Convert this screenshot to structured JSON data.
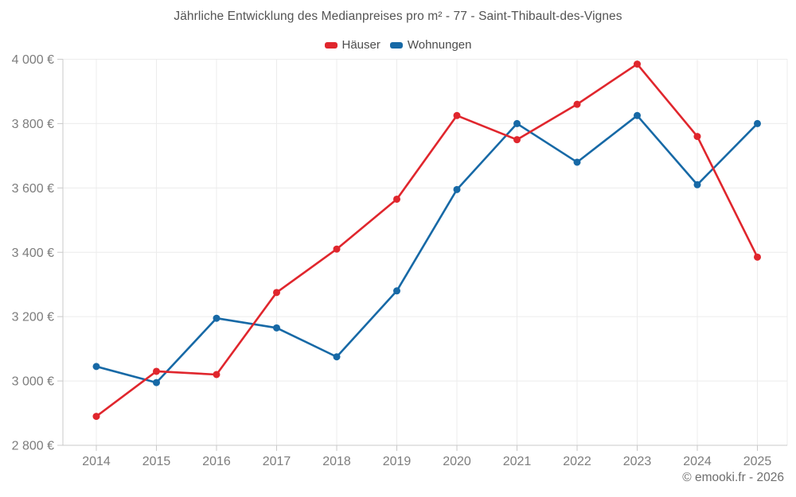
{
  "footer": {
    "text": "© emooki.fr - 2026"
  },
  "colors": {
    "hauser": "#e0262d",
    "wohnungen": "#1769a6",
    "grid": "#ececec",
    "axis": "#c9c9c9",
    "tick_text": "#7d7d7d",
    "title_text": "#545454",
    "legend_text": "#4d4d4d",
    "footer_text": "#6e6e6e",
    "background": "#ffffff"
  },
  "chart_data": {
    "type": "line",
    "title": "Jährliche Entwicklung des Medianpreises pro m² - 77 - Saint-Thibault-des-Vignes",
    "categories": [
      "2014",
      "2015",
      "2016",
      "2017",
      "2018",
      "2019",
      "2020",
      "2021",
      "2022",
      "2023",
      "2024",
      "2025"
    ],
    "series": [
      {
        "id": "wohnungen",
        "name": "Wohnungen",
        "color": "#1769a6",
        "values": [
          3045,
          2995,
          3195,
          3165,
          3075,
          3280,
          3595,
          3800,
          3680,
          3825,
          3610,
          3800
        ]
      },
      {
        "id": "hauser",
        "name": "Häuser",
        "color": "#e0262d",
        "values": [
          2890,
          3030,
          3020,
          3275,
          3410,
          3565,
          3825,
          3750,
          3860,
          3985,
          3760,
          3385
        ]
      }
    ],
    "legend_order": [
      "hauser",
      "wohnungen"
    ],
    "legend_position": "top",
    "grid": true,
    "ylim": [
      2800,
      4000
    ],
    "y_ticks": [
      {
        "value": 2800,
        "label": "2 800 €"
      },
      {
        "value": 3000,
        "label": "3 000 €"
      },
      {
        "value": 3200,
        "label": "3 200 €"
      },
      {
        "value": 3400,
        "label": "3 400 €"
      },
      {
        "value": 3600,
        "label": "3 600 €"
      },
      {
        "value": 3800,
        "label": "3 800 €"
      },
      {
        "value": 4000,
        "label": "4 000 €"
      }
    ],
    "xlabel": "",
    "ylabel": ""
  }
}
